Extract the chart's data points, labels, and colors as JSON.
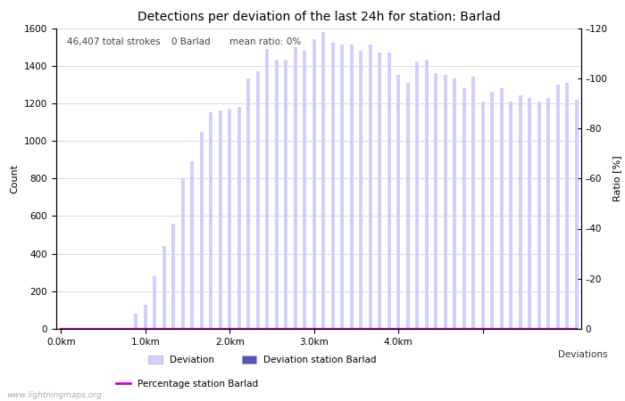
{
  "title": "Detections per deviation of the last 24h for station: Barlad",
  "subtitle_parts": [
    "46,407 total strokes",
    "0 Barlad",
    "mean ratio: 0%"
  ],
  "ylabel_left": "Count",
  "ylabel_right": "Ratio [%]",
  "xlabel": "Deviations",
  "ylim_left": [
    0,
    1600
  ],
  "ylim_right": [
    0,
    120
  ],
  "xtick_positions": [
    0,
    9,
    18,
    27,
    36,
    45
  ],
  "xtick_labels": [
    "0.0km",
    "1.0km",
    "2.0km",
    "3.0km",
    "4.0km",
    ""
  ],
  "ytick_left": [
    0,
    200,
    400,
    600,
    800,
    1000,
    1200,
    1400,
    1600
  ],
  "ytick_right": [
    0,
    20,
    40,
    60,
    80,
    100,
    120
  ],
  "bar_color": "#d0d0ff",
  "bar_color_station": "#5555bb",
  "line_color": "#cc00cc",
  "background_color": "#ffffff",
  "grid_color": "#cccccc",
  "annotation_color": "#444444",
  "bar_width": 0.4,
  "bar_values": [
    2,
    1,
    1,
    1,
    2,
    1,
    2,
    1,
    80,
    130,
    280,
    440,
    560,
    800,
    890,
    1050,
    1150,
    1160,
    1170,
    1180,
    1330,
    1370,
    1490,
    1430,
    1430,
    1500,
    1480,
    1540,
    1580,
    1520,
    1510,
    1510,
    1480,
    1510,
    1470,
    1470,
    1350,
    1310,
    1420,
    1430,
    1360,
    1350,
    1330,
    1280,
    1340,
    1210,
    1260,
    1280,
    1210,
    1240,
    1230,
    1210,
    1230,
    1300,
    1310,
    1220
  ],
  "station_bar_values": [
    0,
    0,
    0,
    0,
    0,
    0,
    0,
    0,
    0,
    0,
    0,
    0,
    0,
    0,
    0,
    0,
    0,
    0,
    0,
    0,
    0,
    0,
    0,
    0,
    0,
    0,
    0,
    0,
    0,
    0,
    0,
    0,
    0,
    0,
    0,
    0,
    0,
    0,
    0,
    0,
    0,
    0,
    0,
    0,
    0,
    0,
    0,
    0,
    0,
    0,
    0,
    0,
    0,
    0,
    0,
    0
  ],
  "percentage_values": [
    0,
    0,
    0,
    0,
    0,
    0,
    0,
    0,
    0,
    0,
    0,
    0,
    0,
    0,
    0,
    0,
    0,
    0,
    0,
    0,
    0,
    0,
    0,
    0,
    0,
    0,
    0,
    0,
    0,
    0,
    0,
    0,
    0,
    0,
    0,
    0,
    0,
    0,
    0,
    0,
    0,
    0,
    0,
    0,
    0,
    0,
    0,
    0,
    0,
    0,
    0,
    0,
    0,
    0,
    0,
    0
  ],
  "legend_label_deviation": "Deviation",
  "legend_label_station": "Deviation station Barlad",
  "legend_label_pct": "Percentage station Barlad",
  "watermark": "www.lightningmaps.org",
  "title_fontsize": 10,
  "annotation_fontsize": 7.5,
  "axis_fontsize": 8,
  "tick_fontsize": 7.5,
  "legend_fontsize": 7.5
}
